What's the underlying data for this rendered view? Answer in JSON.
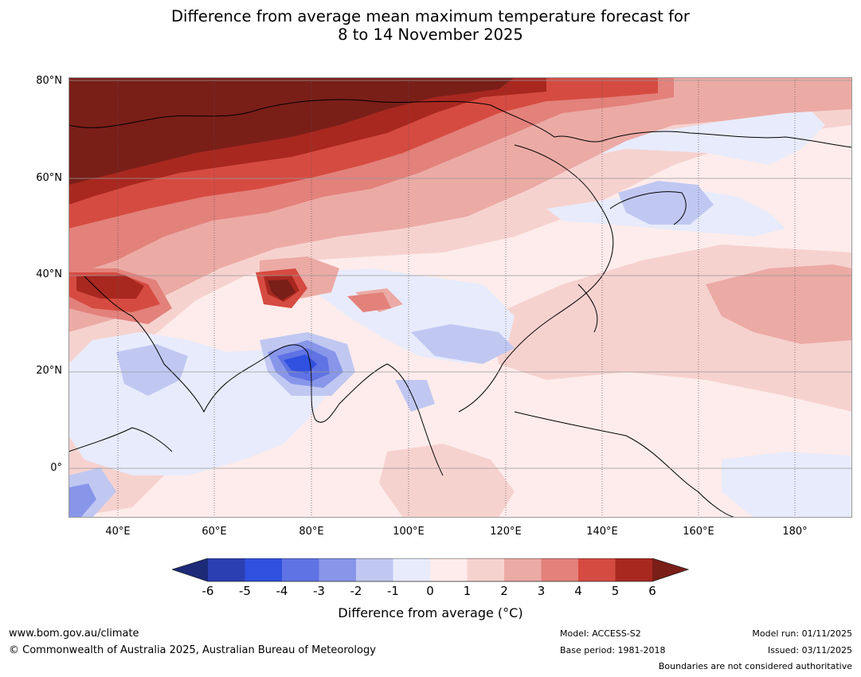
{
  "title": {
    "line1": "Difference from average mean maximum temperature forecast for",
    "line2": "8 to 14 November 2025"
  },
  "map": {
    "lat_labels": [
      "80°N",
      "60°N",
      "40°N",
      "20°N",
      "0°"
    ],
    "lon_labels": [
      "40°E",
      "60°E",
      "80°E",
      "100°E",
      "120°E",
      "140°E",
      "160°E",
      "180°"
    ]
  },
  "colorbar": {
    "ticks": [
      "-6",
      "-5",
      "-4",
      "-3",
      "-2",
      "-1",
      "0",
      "1",
      "2",
      "3",
      "4",
      "5",
      "6"
    ],
    "label": "Difference from average (°C)",
    "colors": {
      "lt_-6": "#1c2a78",
      "-6_-5": "#2b3fb3",
      "-5_-4": "#3050e0",
      "-4_-3": "#5f73e4",
      "-3_-2": "#8896ea",
      "-2_-1": "#c0c8f2",
      "-1_0": "#e8ebfb",
      "0_1": "#fdeceb",
      "1_2": "#f6d2cf",
      "2_3": "#ecaaa5",
      "3_4": "#e3817b",
      "4_5": "#d64b41",
      "5_6": "#a82820",
      "gt_6": "#7a1e18"
    }
  },
  "footer": {
    "website": "www.bom.gov.au/climate",
    "copyright": "© Commonwealth of Australia 2025, Australian Bureau of Meteorology",
    "model": "Model: ACCESS-S2",
    "base_period": "Base period: 1981-2018",
    "model_run": "Model run: 01/11/2025",
    "issued": "Issued: 03/11/2025",
    "disclaimer": "Boundaries are not considered authoritative"
  }
}
